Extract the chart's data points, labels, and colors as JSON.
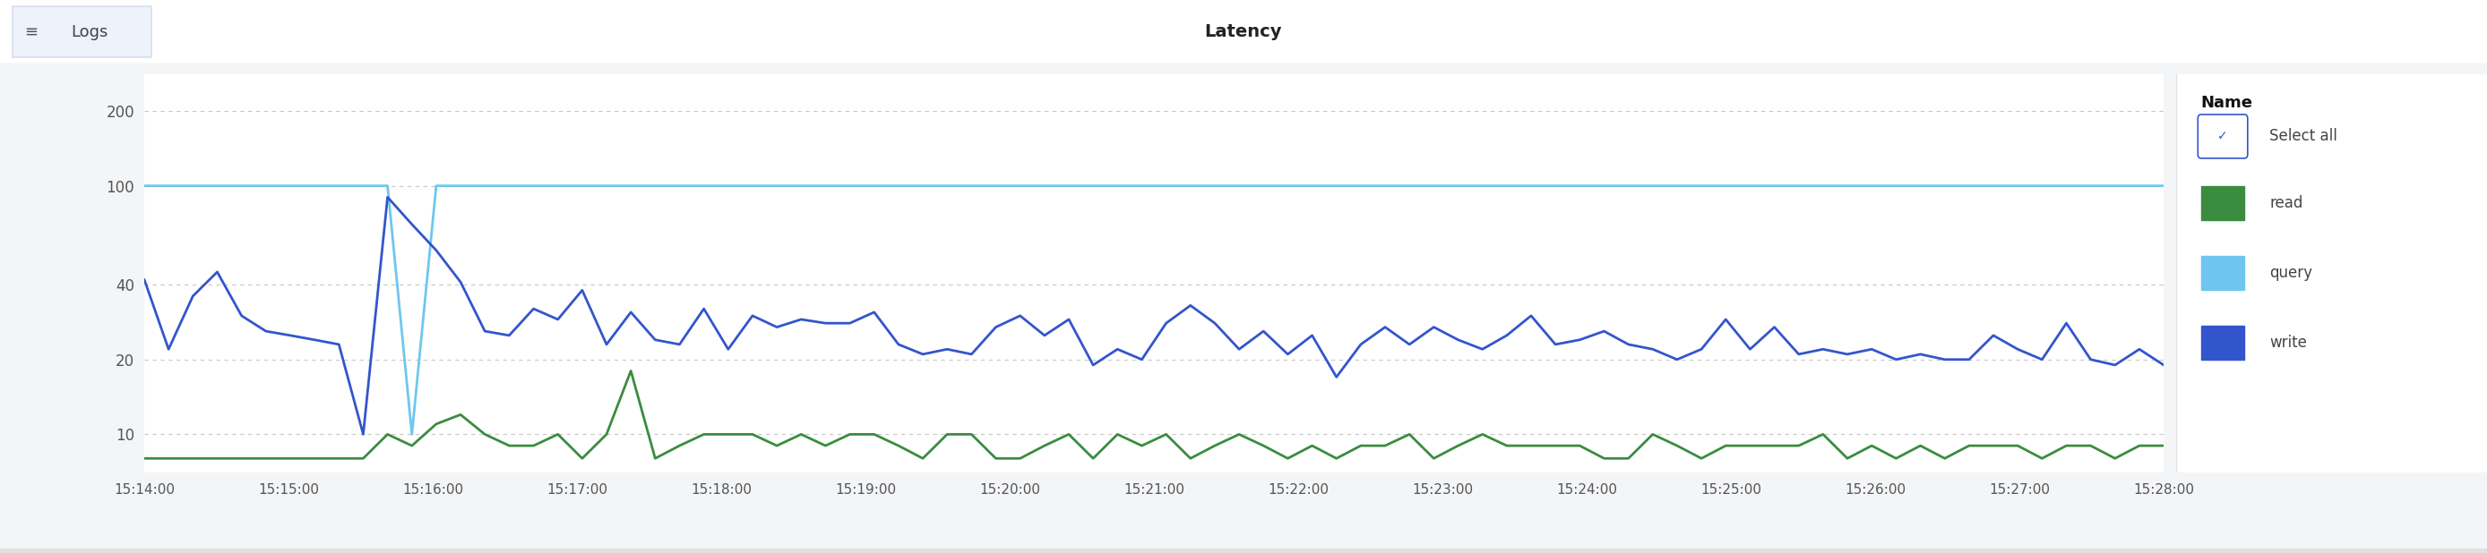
{
  "title": "Latency",
  "top_label": "Logs",
  "legend_title": "Name",
  "background_color": "#f4f5f7",
  "plot_bg_color": "#ffffff",
  "grid_color": "#c8c8c8",
  "yticks": [
    10,
    20,
    40,
    100,
    200
  ],
  "ymin": 7,
  "ymax": 280,
  "time_labels": [
    "15:14:00",
    "15:15:00",
    "15:16:00",
    "15:17:00",
    "15:18:00",
    "15:19:00",
    "15:20:00",
    "15:21:00",
    "15:22:00",
    "15:23:00",
    "15:24:00",
    "15:25:00",
    "15:26:00",
    "15:27:00",
    "15:28:00"
  ],
  "query_color": "#6ec6f0",
  "write_color": "#3355cc",
  "read_color": "#3a8c3f",
  "query_y": [
    100,
    100,
    100,
    100,
    100,
    100,
    100,
    100,
    100,
    100,
    100,
    10,
    100,
    100,
    100,
    100,
    100,
    100,
    100,
    100,
    100,
    100,
    100,
    100,
    100,
    100,
    100,
    100,
    100,
    100,
    100,
    100,
    100,
    100,
    100,
    100,
    100,
    100,
    100,
    100,
    100,
    100,
    100,
    100,
    100,
    100,
    100,
    100,
    100,
    100,
    100,
    100,
    100,
    100,
    100,
    100,
    100,
    100,
    100,
    100,
    100,
    100,
    100,
    100,
    100,
    100,
    100,
    100,
    100,
    100,
    100,
    100,
    100,
    100,
    100,
    100,
    100,
    100,
    100,
    100,
    100,
    100,
    100,
    100
  ],
  "write_y": [
    42,
    22,
    36,
    45,
    30,
    26,
    25,
    24,
    23,
    10,
    90,
    70,
    55,
    41,
    26,
    25,
    32,
    29,
    38,
    23,
    31,
    24,
    23,
    32,
    22,
    30,
    27,
    29,
    28,
    28,
    31,
    23,
    21,
    22,
    21,
    27,
    30,
    25,
    29,
    19,
    22,
    20,
    28,
    33,
    28,
    22,
    26,
    21,
    25,
    17,
    23,
    27,
    23,
    27,
    24,
    22,
    25,
    30,
    23,
    24,
    26,
    23,
    22,
    20,
    22,
    29,
    22,
    27,
    21,
    22,
    21,
    22,
    20,
    21,
    20,
    20,
    25,
    22,
    20,
    28,
    20,
    19,
    22,
    19
  ],
  "read_y": [
    8,
    8,
    8,
    8,
    8,
    8,
    8,
    8,
    8,
    8,
    10,
    9,
    11,
    12,
    10,
    9,
    9,
    10,
    8,
    10,
    18,
    8,
    9,
    10,
    10,
    10,
    9,
    10,
    9,
    10,
    10,
    9,
    8,
    10,
    10,
    8,
    8,
    9,
    10,
    8,
    10,
    9,
    10,
    8,
    9,
    10,
    9,
    8,
    9,
    8,
    9,
    9,
    10,
    8,
    9,
    10,
    9,
    9,
    9,
    9,
    8,
    8,
    10,
    9,
    8,
    9,
    9,
    9,
    9,
    10,
    8,
    9,
    8,
    9,
    8,
    9,
    9,
    9,
    8,
    9,
    9,
    8,
    9,
    9
  ],
  "header_bg": "#ffffff",
  "header_border": "#e0e0e0",
  "logs_btn_bg": "#eef2fb",
  "logs_btn_border": "#d0d8ee",
  "legend_text_color": "#444444",
  "tick_color": "#555555",
  "title_color": "#222222"
}
